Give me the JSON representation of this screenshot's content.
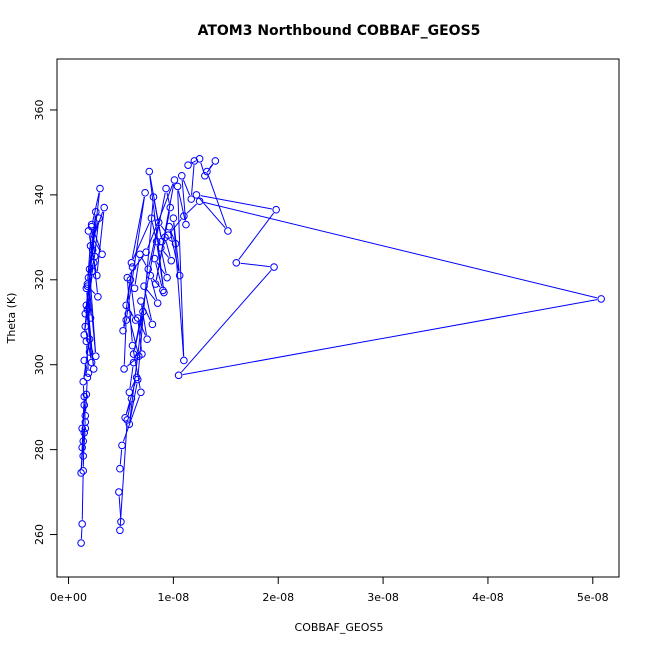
{
  "chart_data": {
    "type": "scatter",
    "title": "ATOM3 Northbound COBBAF_GEOS5",
    "xlabel": "COBBAF_GEOS5",
    "ylabel": "Theta (K)",
    "xlim": [
      -1.1e-09,
      5.25e-08
    ],
    "ylim": [
      250,
      372
    ],
    "x_ticks": [
      0,
      1e-08,
      2e-08,
      3e-08,
      4e-08,
      5e-08
    ],
    "x_tick_labels": [
      "0e+00",
      "1e-08",
      "2e-08",
      "3e-08",
      "4e-08",
      "5e-08"
    ],
    "y_ticks": [
      260,
      280,
      300,
      320,
      340,
      360
    ],
    "y_tick_labels": [
      "260",
      "280",
      "300",
      "320",
      "340",
      "360"
    ],
    "grid": false,
    "legend": "none",
    "series": [
      {
        "color": "#0000ff",
        "style": "lines-and-circles",
        "x": [
          1.2e-09,
          1.3e-09,
          1.4e-09,
          1.5e-09,
          1.4e-09,
          1.6e-09,
          1.5e-09,
          1.7e-09,
          1.6e-09,
          1.8e-09,
          1.5e-09,
          1.9e-09,
          1.7e-09,
          2e-09,
          1.6e-09,
          2.2e-09,
          1.8e-09,
          2.4e-09,
          1.7e-09,
          2.1e-09,
          1.9e-09,
          2.6e-09,
          2e-09,
          2.3e-09,
          2.8e-09,
          1.8e-09,
          2.5e-09,
          2.2e-09,
          3.2e-09,
          1.9e-09,
          2.7e-09,
          3.4e-09,
          2.1e-09,
          2.9e-09,
          2.4e-09,
          1.6e-09,
          3e-09,
          2.2e-09,
          1.8e-09,
          2.6e-09,
          1.5e-09,
          2.3e-09,
          1.7e-09,
          2e-09,
          1.4e-09,
          1.6e-09,
          1.3e-09,
          1.5e-09,
          1.2e-09,
          1.4e-09,
          1.3e-09
        ],
        "y": [
          258.0,
          262.5,
          275.0,
          284.0,
          278.5,
          285.0,
          290.5,
          293.0,
          288.0,
          297.0,
          301.0,
          298.0,
          305.5,
          303.0,
          309.0,
          300.5,
          313.0,
          299.0,
          318.0,
          311.0,
          320.5,
          302.0,
          322.5,
          327.0,
          316.0,
          318.5,
          325.5,
          333.0,
          326.0,
          331.5,
          321.0,
          337.0,
          328.0,
          334.5,
          324.0,
          312.0,
          341.5,
          332.5,
          319.0,
          336.0,
          307.0,
          322.0,
          314.0,
          306.0,
          296.0,
          286.5,
          280.5,
          292.5,
          274.5,
          282.0,
          285.0
        ]
      },
      {
        "color": "#0000ff",
        "style": "lines-and-circles",
        "x": [
          4.8e-09,
          5e-09,
          4.9e-09,
          5.6e-09,
          6e-09,
          5.4e-09,
          6.5e-09,
          5.8e-09,
          6.2e-09,
          7e-09,
          6.6e-09,
          7.5e-09,
          6.9e-09,
          8e-09,
          7.2e-09,
          8.5e-09,
          7.8e-09,
          9e-09,
          8.2e-09,
          9.4e-09,
          8.8e-09,
          9.8e-09,
          9.2e-09,
          1.02e-08,
          9.6e-09,
          1.06e-08,
          1e-08,
          1.1e-08,
          1.04e-08,
          1.12e-08,
          1.08e-08,
          1.17e-08,
          1.2e-08,
          1.14e-08,
          1.25e-08,
          1.3e-08,
          1.4e-08,
          1.32e-08,
          1.52e-08,
          1.22e-08,
          1.98e-08,
          1.6e-08,
          1.96e-08,
          1.05e-08,
          5.08e-08,
          1.25e-08,
          1.1e-08,
          9.5e-09,
          8.6e-09,
          7.6e-09,
          6.8e-09,
          6.3e-09,
          5.9e-09,
          6.4e-09,
          5.5e-09,
          6.1e-09,
          5.2e-09,
          5.7e-09,
          6.7e-09,
          5.3e-09,
          5.5e-09,
          7.3e-09,
          6e-09,
          7.9e-09,
          8.4e-09,
          9.1e-09,
          7.7e-09,
          8.9e-09,
          8.1e-09,
          6.6e-09,
          5.8e-09,
          7.1e-09,
          6.2e-09,
          9.3e-09,
          9.7e-09,
          8.3e-09,
          1.01e-08,
          7.4e-09,
          5.6e-09,
          6.1e-09,
          6.9e-09,
          5.1e-09,
          4.9e-09
        ],
        "y": [
          270.0,
          263.0,
          261.0,
          287.0,
          292.0,
          287.5,
          297.0,
          293.5,
          300.5,
          302.5,
          311.0,
          306.0,
          315.0,
          309.5,
          318.5,
          314.5,
          321.0,
          317.5,
          325.0,
          320.5,
          327.5,
          324.5,
          330.0,
          328.5,
          332.5,
          321.0,
          334.5,
          301.0,
          342.0,
          333.0,
          344.5,
          339.0,
          348.0,
          347.0,
          348.5,
          344.5,
          348.0,
          345.5,
          331.5,
          340.0,
          336.5,
          324.0,
          323.0,
          297.5,
          315.5,
          338.5,
          335.0,
          330.5,
          333.5,
          322.5,
          326.0,
          318.0,
          320.0,
          310.5,
          314.0,
          323.0,
          308.0,
          312.0,
          302.0,
          299.0,
          310.5,
          340.5,
          324.0,
          334.5,
          329.0,
          317.0,
          345.5,
          329.0,
          339.5,
          296.5,
          286.0,
          312.5,
          302.5,
          341.5,
          337.0,
          319.0,
          343.5,
          326.5,
          320.5,
          304.5,
          293.5,
          281.0,
          275.5
        ]
      }
    ]
  }
}
